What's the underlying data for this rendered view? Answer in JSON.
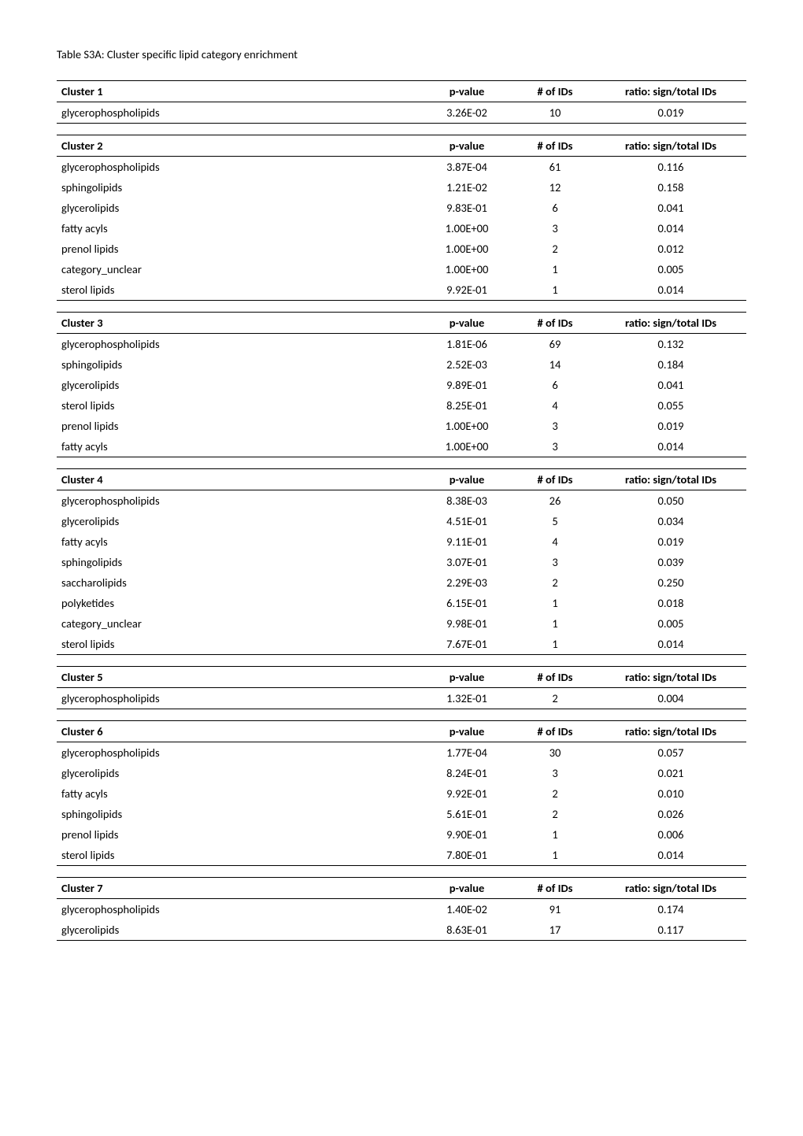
{
  "title": "Table S3A: Cluster specific lipid category enrichment",
  "header_labels": {
    "pvalue": "p-value",
    "n_ids": "# of IDs",
    "ratio": "ratio: sign/total IDs"
  },
  "columns": {
    "widths": {
      "name": "auto",
      "pvalue": 110,
      "n_ids": 90,
      "ratio": 180
    },
    "align": {
      "name": "left",
      "pvalue": "center",
      "n_ids": "center",
      "ratio": "center"
    }
  },
  "style": {
    "font_family": "Calibri",
    "body_fontsize_pt": 11,
    "header_fontweight": "bold",
    "rule_color": "#000000",
    "background_color": "#ffffff",
    "text_color": "#000000"
  },
  "clusters": [
    {
      "name": "Cluster 1",
      "rows": [
        {
          "cat": "glycerophospholipids",
          "p": "3.26E-02",
          "n": "10",
          "r": "0.019"
        }
      ]
    },
    {
      "name": "Cluster 2",
      "rows": [
        {
          "cat": "glycerophospholipids",
          "p": "3.87E-04",
          "n": "61",
          "r": "0.116"
        },
        {
          "cat": "sphingolipids",
          "p": "1.21E-02",
          "n": "12",
          "r": "0.158"
        },
        {
          "cat": "glycerolipids",
          "p": "9.83E-01",
          "n": "6",
          "r": "0.041"
        },
        {
          "cat": "fatty acyls",
          "p": "1.00E+00",
          "n": "3",
          "r": "0.014"
        },
        {
          "cat": "prenol lipids",
          "p": "1.00E+00",
          "n": "2",
          "r": "0.012"
        },
        {
          "cat": "category_unclear",
          "p": "1.00E+00",
          "n": "1",
          "r": "0.005"
        },
        {
          "cat": "sterol lipids",
          "p": "9.92E-01",
          "n": "1",
          "r": "0.014"
        }
      ]
    },
    {
      "name": "Cluster 3",
      "rows": [
        {
          "cat": "glycerophospholipids",
          "p": "1.81E-06",
          "n": "69",
          "r": "0.132"
        },
        {
          "cat": "sphingolipids",
          "p": "2.52E-03",
          "n": "14",
          "r": "0.184"
        },
        {
          "cat": "glycerolipids",
          "p": "9.89E-01",
          "n": "6",
          "r": "0.041"
        },
        {
          "cat": "sterol lipids",
          "p": "8.25E-01",
          "n": "4",
          "r": "0.055"
        },
        {
          "cat": "prenol lipids",
          "p": "1.00E+00",
          "n": "3",
          "r": "0.019"
        },
        {
          "cat": "fatty acyls",
          "p": "1.00E+00",
          "n": "3",
          "r": "0.014"
        }
      ]
    },
    {
      "name": "Cluster 4",
      "rows": [
        {
          "cat": "glycerophospholipids",
          "p": "8.38E-03",
          "n": "26",
          "r": "0.050"
        },
        {
          "cat": "glycerolipids",
          "p": "4.51E-01",
          "n": "5",
          "r": "0.034"
        },
        {
          "cat": "fatty acyls",
          "p": "9.11E-01",
          "n": "4",
          "r": "0.019"
        },
        {
          "cat": "sphingolipids",
          "p": "3.07E-01",
          "n": "3",
          "r": "0.039"
        },
        {
          "cat": "saccharolipids",
          "p": "2.29E-03",
          "n": "2",
          "r": "0.250"
        },
        {
          "cat": "polyketides",
          "p": "6.15E-01",
          "n": "1",
          "r": "0.018"
        },
        {
          "cat": "category_unclear",
          "p": "9.98E-01",
          "n": "1",
          "r": "0.005"
        },
        {
          "cat": "sterol lipids",
          "p": "7.67E-01",
          "n": "1",
          "r": "0.014"
        }
      ]
    },
    {
      "name": "Cluster 5",
      "rows": [
        {
          "cat": "glycerophospholipids",
          "p": "1.32E-01",
          "n": "2",
          "r": "0.004"
        }
      ]
    },
    {
      "name": "Cluster 6",
      "rows": [
        {
          "cat": "glycerophospholipids",
          "p": "1.77E-04",
          "n": "30",
          "r": "0.057"
        },
        {
          "cat": "glycerolipids",
          "p": "8.24E-01",
          "n": "3",
          "r": "0.021"
        },
        {
          "cat": "fatty acyls",
          "p": "9.92E-01",
          "n": "2",
          "r": "0.010"
        },
        {
          "cat": "sphingolipids",
          "p": "5.61E-01",
          "n": "2",
          "r": "0.026"
        },
        {
          "cat": "prenol lipids",
          "p": "9.90E-01",
          "n": "1",
          "r": "0.006"
        },
        {
          "cat": "sterol lipids",
          "p": "7.80E-01",
          "n": "1",
          "r": "0.014"
        }
      ]
    },
    {
      "name": "Cluster 7",
      "rows": [
        {
          "cat": "glycerophospholipids",
          "p": "1.40E-02",
          "n": "91",
          "r": "0.174"
        },
        {
          "cat": "glycerolipids",
          "p": "8.63E-01",
          "n": "17",
          "r": "0.117"
        }
      ]
    }
  ]
}
